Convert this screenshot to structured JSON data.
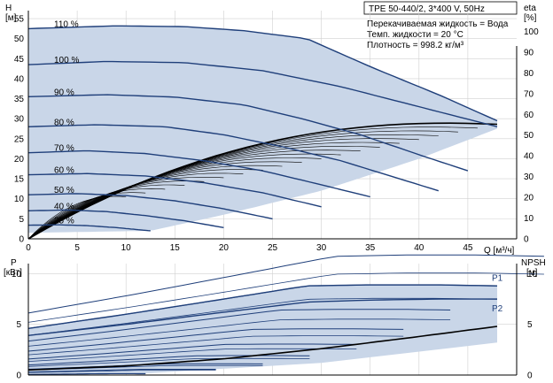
{
  "header": {
    "title": "TPE 50-440/2, 3*400 V, 50Hz",
    "lines": [
      "Перекачиваемая жидкость = Вода",
      "Темп. жидкости = 20 °C",
      "Плотность = 998.2 кг/м³"
    ]
  },
  "colors": {
    "fill": "#c9d6e8",
    "curve": "#1f3f7a",
    "eff": "#000000",
    "grid": "#d0d0d0",
    "axis": "#000000"
  },
  "chart_data": [
    {
      "type": "line",
      "name": "head-efficiency",
      "xlabel": "Q [м³/ч]",
      "ylabel_left": "H",
      "ylabel_left_unit": "[м]",
      "ylabel_right": "eta",
      "ylabel_right_unit": "[%]",
      "xlim": [
        0,
        50
      ],
      "ylim_left": [
        0,
        57
      ],
      "ylim_right": [
        0,
        110
      ],
      "x_ticks": [
        0,
        5,
        10,
        15,
        20,
        25,
        30,
        35,
        40,
        45
      ],
      "y_ticks_left": [
        0,
        5,
        10,
        15,
        20,
        25,
        30,
        35,
        40,
        45,
        50,
        55
      ],
      "y_ticks_right": [
        0,
        10,
        20,
        30,
        40,
        50,
        60,
        70,
        80,
        90,
        100
      ],
      "speeds": [
        {
          "label": "110 %",
          "x": [
            0,
            9,
            16,
            22,
            28.5,
            35,
            42,
            48
          ],
          "y": [
            52.5,
            53.2,
            53.0,
            52.0,
            50.0,
            43.0,
            36.0,
            29.5
          ]
        },
        {
          "label": "100 %",
          "x": [
            0,
            8,
            16,
            24,
            32,
            40,
            48
          ],
          "y": [
            43.5,
            44.3,
            44.0,
            42.0,
            38.0,
            33.0,
            28.0
          ]
        },
        {
          "label": "90 %",
          "x": [
            0,
            8,
            15,
            22,
            28,
            34,
            40,
            45
          ],
          "y": [
            35.5,
            36.0,
            35.4,
            33.5,
            30.0,
            26.0,
            21.0,
            17.0
          ]
        },
        {
          "label": "80 %",
          "x": [
            0,
            7,
            14,
            20,
            26,
            32,
            38,
            42
          ],
          "y": [
            28.0,
            28.5,
            28.0,
            26.0,
            23.0,
            19.5,
            15.0,
            12.0
          ]
        },
        {
          "label": "70 %",
          "x": [
            0,
            6,
            12,
            18,
            24,
            30,
            35
          ],
          "y": [
            21.5,
            22.0,
            21.3,
            19.5,
            17.0,
            13.5,
            10.5
          ]
        },
        {
          "label": "60 %",
          "x": [
            0,
            6,
            12,
            18,
            24,
            30
          ],
          "y": [
            16.0,
            16.3,
            15.7,
            14.0,
            11.5,
            8.0
          ]
        },
        {
          "label": "50 %",
          "x": [
            0,
            5,
            10,
            15,
            20,
            25
          ],
          "y": [
            11.0,
            11.3,
            10.8,
            9.5,
            7.5,
            5.0
          ]
        },
        {
          "label": "40 %",
          "x": [
            0,
            4,
            8,
            12,
            16,
            20
          ],
          "y": [
            7.0,
            7.2,
            6.8,
            5.8,
            4.5,
            2.8
          ]
        },
        {
          "label": "25 %",
          "x": [
            0,
            3,
            6,
            9,
            12.5
          ],
          "y": [
            3.4,
            3.5,
            3.3,
            2.8,
            2.0
          ]
        }
      ],
      "envelope_upper": {
        "x": [
          0,
          9,
          16,
          22,
          28.5,
          35,
          42,
          48
        ],
        "y": [
          52.5,
          53.2,
          53.0,
          52.0,
          50.0,
          43.0,
          36.0,
          29.5
        ]
      },
      "envelope_lower": {
        "x": [
          0,
          12.5,
          20,
          30,
          40,
          48
        ],
        "y": [
          1.5,
          2.0,
          6.0,
          12.0,
          20.0,
          27.5
        ]
      },
      "efficiency_curves": {
        "max_eta": [
          60,
          58,
          56,
          54,
          52,
          50,
          48,
          46,
          44,
          42,
          40,
          38,
          36,
          34,
          32,
          30,
          28,
          26,
          24,
          22
        ],
        "q_end": [
          48,
          46,
          44,
          42,
          40,
          38,
          36,
          34,
          32,
          30,
          28,
          26,
          24,
          22,
          20,
          18,
          16,
          14,
          12,
          10
        ]
      }
    },
    {
      "type": "line",
      "name": "power-npsh",
      "ylabel_left": "P",
      "ylabel_left_unit": "[кВт]",
      "ylabel_right": "NPSH",
      "ylabel_right_unit": "[м]",
      "xlim": [
        0,
        50
      ],
      "ylim": [
        0,
        11
      ],
      "y_ticks_left": [
        0,
        5,
        10
      ],
      "y_ticks_right": [
        0,
        5,
        10
      ],
      "series_labels": [
        "P1",
        "P2"
      ],
      "P1": {
        "x": [
          0,
          10,
          20,
          28.5,
          35,
          42,
          48
        ],
        "y": [
          4.6,
          6.0,
          7.5,
          8.8,
          8.9,
          8.9,
          8.8
        ]
      },
      "P2": {
        "x": [
          0,
          10,
          20,
          28.5,
          35,
          42,
          48
        ],
        "y": [
          3.9,
          5.0,
          6.2,
          7.2,
          7.4,
          7.5,
          7.5
        ]
      },
      "npsh": {
        "x": [
          0,
          10,
          20,
          30,
          40,
          48
        ],
        "y": [
          0.5,
          0.9,
          1.6,
          2.6,
          3.8,
          4.8
        ]
      },
      "speed_factors": [
        0.25,
        0.4,
        0.5,
        0.6,
        0.7,
        0.8,
        0.9,
        1.0,
        1.1
      ]
    }
  ]
}
